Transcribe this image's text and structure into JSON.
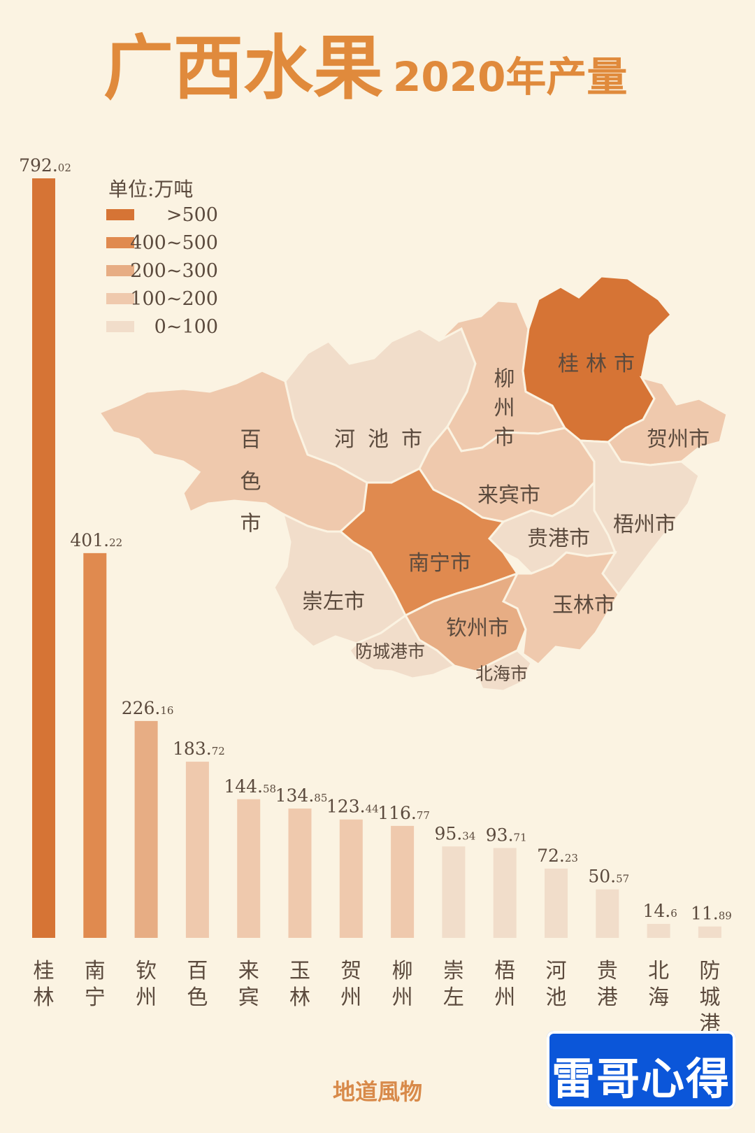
{
  "title": {
    "main": "广西水果",
    "sub": "2020年产量"
  },
  "footer": "地道風物",
  "watermark": "雷哥心得",
  "legend": {
    "unit": "单位:万吨",
    "items": [
      {
        "label": ">500",
        "color": "#d67435"
      },
      {
        "label": "400~500",
        "color": "#e08a4f"
      },
      {
        "label": "200~300",
        "color": "#e7ad84"
      },
      {
        "label": "100~200",
        "color": "#efc9ad"
      },
      {
        "label": "0~100",
        "color": "#f1ddca"
      }
    ]
  },
  "map_labels": [
    {
      "text": "桂林市",
      "color": "#d67435"
    },
    {
      "text": "柳州市",
      "color": "#efc9ad"
    },
    {
      "text": "贺州市",
      "color": "#efc9ad"
    },
    {
      "text": "百色市",
      "color": "#efc9ad"
    },
    {
      "text": "河池市",
      "color": "#f1ddca"
    },
    {
      "text": "来宾市",
      "color": "#efc9ad"
    },
    {
      "text": "梧州市",
      "color": "#f1ddca"
    },
    {
      "text": "贵港市",
      "color": "#f1ddca"
    },
    {
      "text": "南宁市",
      "color": "#e08a4f"
    },
    {
      "text": "崇左市",
      "color": "#f1ddca"
    },
    {
      "text": "玉林市",
      "color": "#efc9ad"
    },
    {
      "text": "钦州市",
      "color": "#e7ad84"
    },
    {
      "text": "防城港市",
      "color": "#f1ddca"
    },
    {
      "text": "北海市",
      "color": "#f1ddca"
    }
  ],
  "chart_data": {
    "type": "bar",
    "title": "广西水果2020年产量",
    "ylabel": "万吨",
    "ylim": [
      0,
      792.02
    ],
    "categories": [
      "桂林",
      "南宁",
      "钦州",
      "百色",
      "来宾",
      "玉林",
      "贺州",
      "柳州",
      "崇左",
      "梧州",
      "河池",
      "贵港",
      "北海",
      "防城港"
    ],
    "values": [
      792.02,
      401.22,
      226.16,
      183.72,
      144.58,
      134.85,
      123.44,
      116.77,
      95.34,
      93.71,
      72.23,
      50.57,
      14.6,
      11.89
    ],
    "value_labels": [
      {
        "int": "792.",
        "dec": "02"
      },
      {
        "int": "401.",
        "dec": "22"
      },
      {
        "int": "226.",
        "dec": "16"
      },
      {
        "int": "183.",
        "dec": "72"
      },
      {
        "int": "144.",
        "dec": "58"
      },
      {
        "int": "134.",
        "dec": "85"
      },
      {
        "int": "123.",
        "dec": "44"
      },
      {
        "int": "116.",
        "dec": "77"
      },
      {
        "int": "95.",
        "dec": "34"
      },
      {
        "int": "93.",
        "dec": "71"
      },
      {
        "int": "72.",
        "dec": "23"
      },
      {
        "int": "50.",
        "dec": "57"
      },
      {
        "int": "14.",
        "dec": "6"
      },
      {
        "int": "11.",
        "dec": "89"
      }
    ],
    "colors": [
      "#d67435",
      "#e08a4f",
      "#e7ad84",
      "#efc9ad",
      "#efc9ad",
      "#efc9ad",
      "#efc9ad",
      "#efc9ad",
      "#f1ddca",
      "#f1ddca",
      "#f1ddca",
      "#f1ddca",
      "#f1ddca",
      "#f1ddca"
    ],
    "grid": false,
    "legend_position": "top-left"
  }
}
